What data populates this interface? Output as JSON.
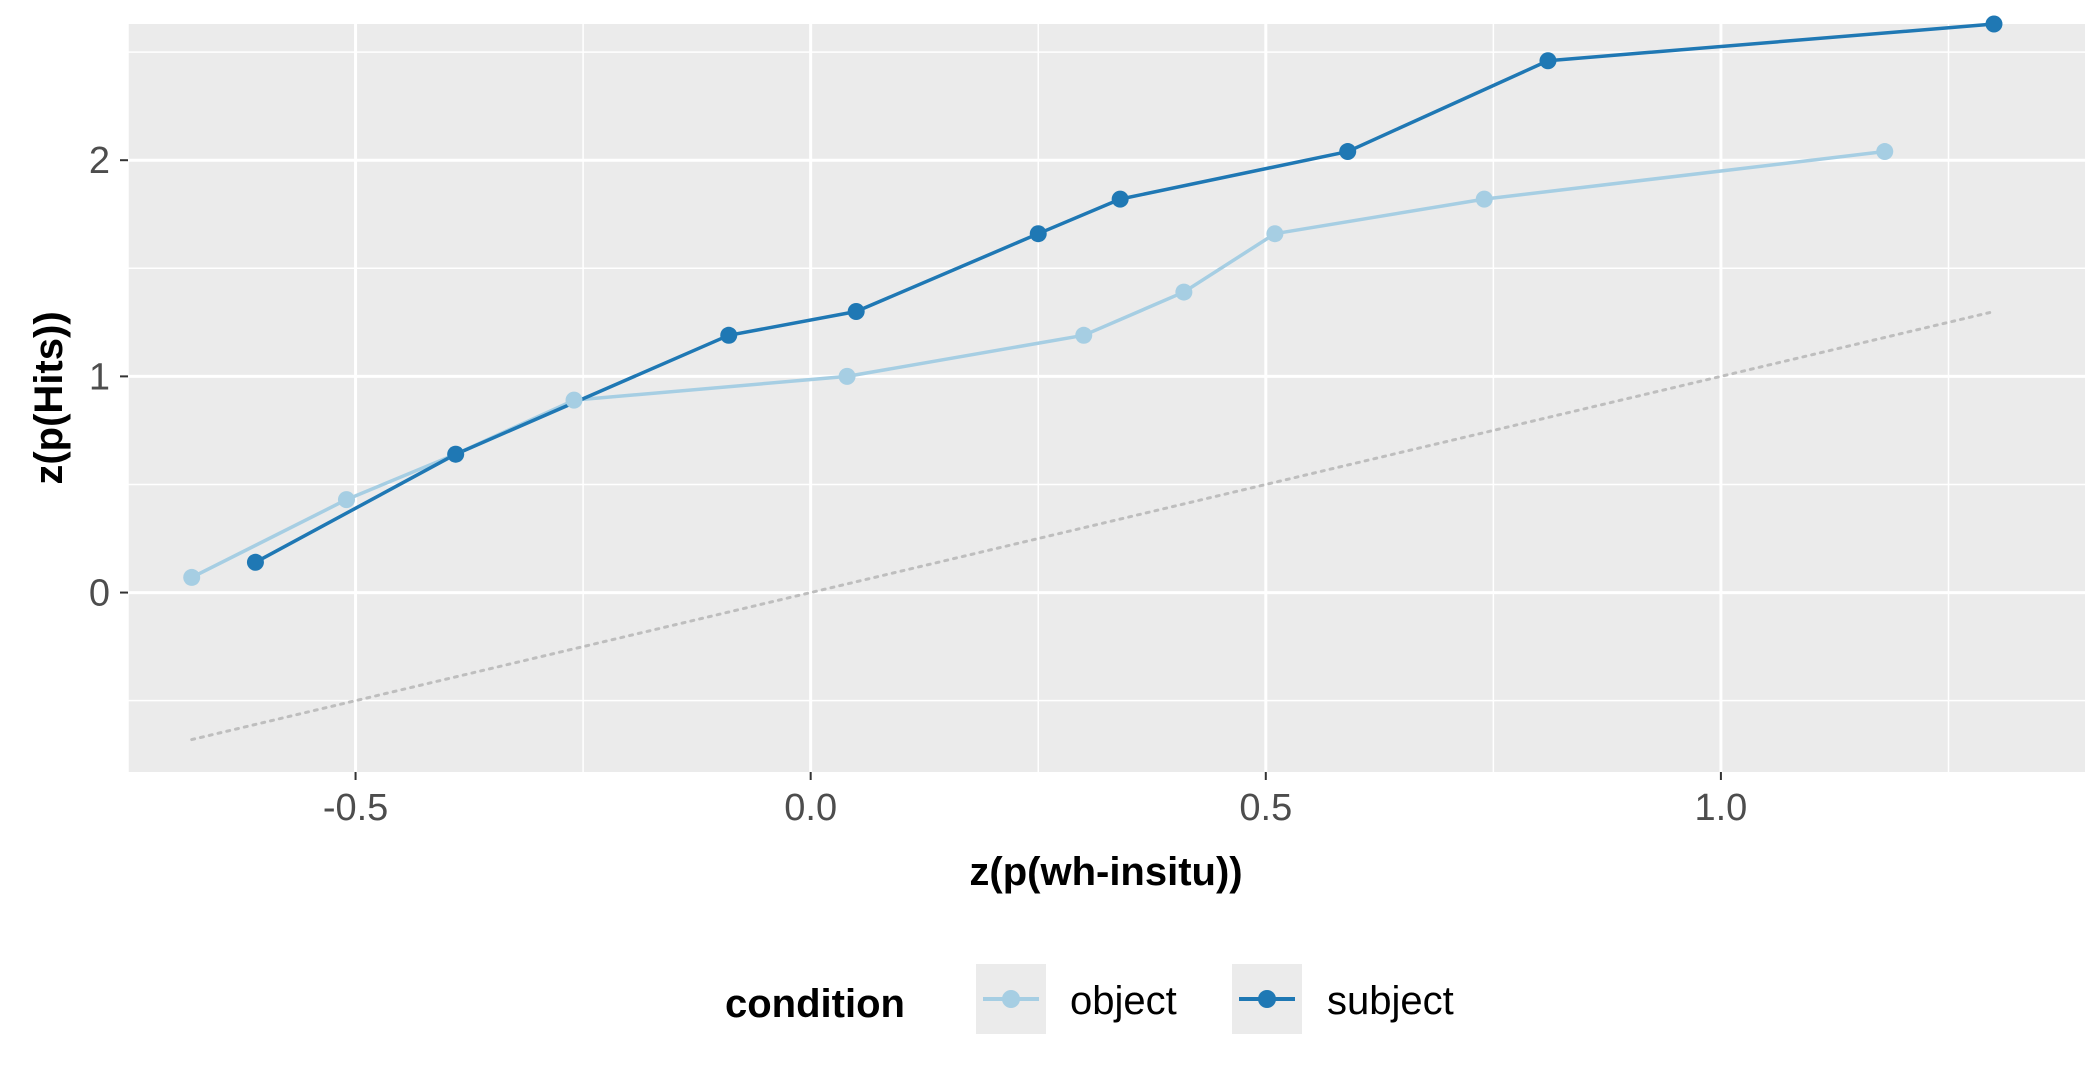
{
  "chart_data": {
    "type": "line",
    "title": "",
    "xlabel": "z(p(wh-insitu))",
    "ylabel": "z(p(Hits))",
    "xlim": [
      -0.75,
      1.4
    ],
    "ylim": [
      -0.83,
      2.63
    ],
    "x_ticks": [
      -0.5,
      0.0,
      0.5,
      1.0
    ],
    "x_tick_labels": [
      "-0.5",
      "0.0",
      "0.5",
      "1.0"
    ],
    "y_ticks": [
      0,
      1,
      2
    ],
    "y_tick_labels": [
      "0",
      "1",
      "2"
    ],
    "grid": true,
    "background": "#EBEBEB",
    "legend": {
      "title": "condition",
      "position": "bottom"
    },
    "series": [
      {
        "name": "object",
        "color": "#A6CEE3",
        "x": [
          -0.68,
          -0.51,
          -0.39,
          -0.26,
          0.04,
          0.3,
          0.41,
          0.51,
          0.74,
          1.18
        ],
        "y": [
          0.07,
          0.43,
          0.64,
          0.89,
          1.0,
          1.19,
          1.39,
          1.66,
          1.82,
          2.04
        ]
      },
      {
        "name": "subject",
        "color": "#1F78B4",
        "x": [
          -0.61,
          -0.39,
          -0.09,
          0.05,
          0.25,
          0.34,
          0.59,
          0.81,
          1.3
        ],
        "y": [
          0.14,
          0.64,
          1.19,
          1.3,
          1.66,
          1.82,
          2.04,
          2.46,
          2.63
        ]
      }
    ],
    "reference_line": {
      "style": "dotted",
      "color": "#BEBEBE",
      "x": [
        -0.68,
        1.3
      ],
      "y": [
        -0.68,
        1.3
      ]
    }
  }
}
